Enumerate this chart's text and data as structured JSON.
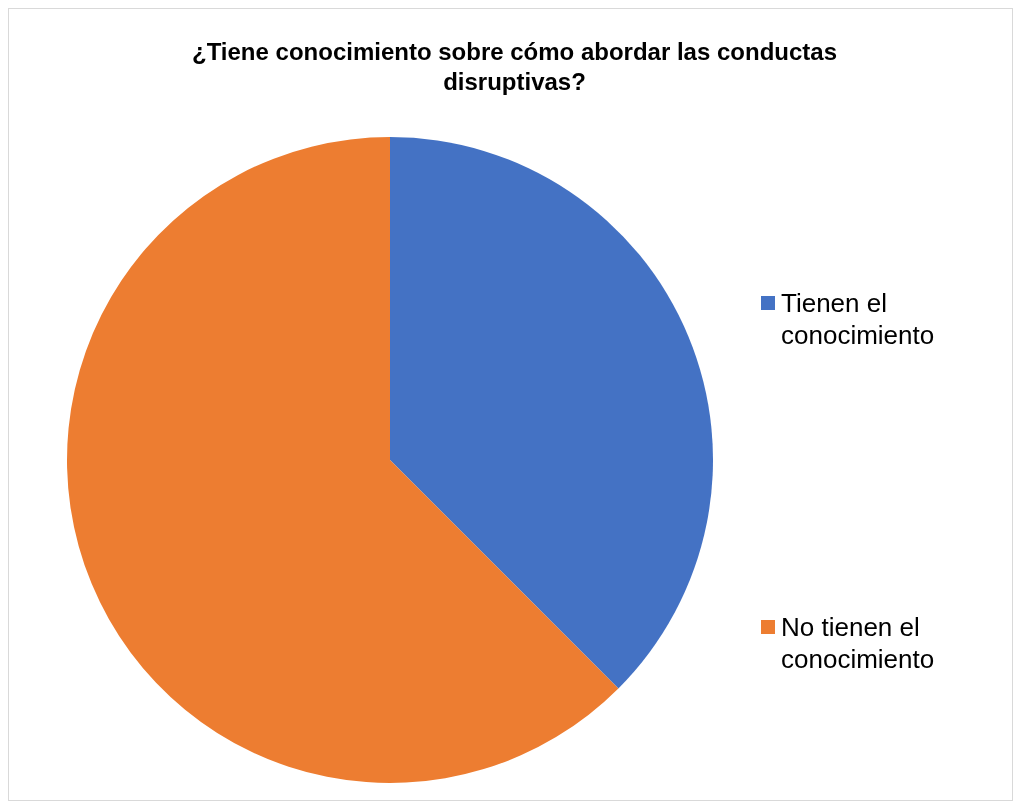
{
  "chart_data": {
    "type": "pie",
    "title": "¿Tiene conocimiento sobre cómo abordar las conductas disruptivas?",
    "categories": [
      "Tienen el conocimiento",
      "No tienen el conocimiento"
    ],
    "values": [
      37.5,
      62.5
    ],
    "colors": [
      "#4472c4",
      "#ed7d31"
    ],
    "legend": "right"
  }
}
